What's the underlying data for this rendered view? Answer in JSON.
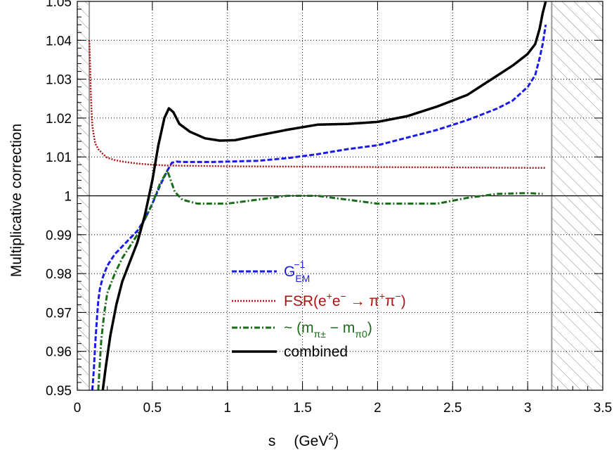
{
  "chart_data": {
    "type": "line",
    "xlabel": "s",
    "xlabel_unit_prefix": "(GeV",
    "xlabel_unit_exp": "2",
    "xlabel_unit_suffix": ")",
    "ylabel": "Multiplicative correction",
    "xlim": [
      0,
      3.5
    ],
    "ylim": [
      0.95,
      1.05
    ],
    "x_ticks": [
      0,
      0.5,
      1,
      1.5,
      2,
      2.5,
      3,
      3.5
    ],
    "x_tick_labels": [
      "0",
      "0.5",
      "1",
      "1.5",
      "2",
      "2.5",
      "3",
      "3.5"
    ],
    "y_ticks": [
      0.95,
      0.96,
      0.97,
      0.98,
      0.99,
      1,
      1.01,
      1.02,
      1.03,
      1.04,
      1.05
    ],
    "y_tick_labels": [
      "0.95",
      "0.96",
      "0.97",
      "0.98",
      "0.99",
      "1",
      "1.01",
      "1.02",
      "1.03",
      "1.04",
      "1.05"
    ],
    "grid": true,
    "reference_line_y": 1,
    "excluded_regions": [
      [
        0,
        0.08
      ],
      [
        3.16,
        3.5
      ]
    ],
    "legend": {
      "placement": "lower-center",
      "entries": [
        {
          "label": "G",
          "sub": "EM",
          "sup": "−1",
          "color": "#1a1ae6",
          "dash": "7,3"
        },
        {
          "label": "FSR(e",
          "sup1": "+",
          "mid1": "e",
          "sup2": "−",
          "mid2": " → π",
          "sup3": "+",
          "mid3": "π",
          "sup4": "−",
          "tail": ")",
          "color": "#b01010",
          "dash": "2,2"
        },
        {
          "label": "~ (m",
          "sub1": "π±",
          "mid": " − m",
          "sub2": "π0",
          "tail": ")",
          "color": "#1a6b1a",
          "dash": "8,3,2,3"
        },
        {
          "label": "combined",
          "color": "#000000",
          "dash": ""
        }
      ]
    },
    "series": [
      {
        "name": "G_EM^-1",
        "color": "#1a1ae6",
        "x": [
          0.1,
          0.11,
          0.12,
          0.13,
          0.14,
          0.15,
          0.17,
          0.2,
          0.25,
          0.3,
          0.35,
          0.4,
          0.45,
          0.5,
          0.55,
          0.6,
          0.63,
          0.66,
          0.7,
          0.8,
          0.9,
          1.0,
          1.2,
          1.4,
          1.6,
          1.8,
          2.0,
          2.2,
          2.4,
          2.6,
          2.8,
          2.9,
          3.0,
          3.05,
          3.08,
          3.1,
          3.12
        ],
        "values": [
          0.95,
          0.955,
          0.962,
          0.968,
          0.973,
          0.976,
          0.979,
          0.982,
          0.985,
          0.987,
          0.989,
          0.991,
          0.994,
          0.998,
          1.0025,
          1.0065,
          1.0085,
          1.0088,
          1.0087,
          1.0087,
          1.0087,
          1.0088,
          1.009,
          1.0097,
          1.0107,
          1.012,
          1.013,
          1.015,
          1.017,
          1.0195,
          1.0225,
          1.0245,
          1.028,
          1.031,
          1.0355,
          1.039,
          1.044
        ]
      },
      {
        "name": "FSR",
        "color": "#b01010",
        "x": [
          0.08,
          0.085,
          0.09,
          0.095,
          0.1,
          0.11,
          0.12,
          0.14,
          0.17,
          0.2,
          0.25,
          0.3,
          0.4,
          0.5,
          0.6,
          0.8,
          1.0,
          1.5,
          2.0,
          2.5,
          3.0,
          3.12
        ],
        "values": [
          1.04,
          1.034,
          1.027,
          1.022,
          1.018,
          1.0155,
          1.0135,
          1.012,
          1.0108,
          1.0098,
          1.0092,
          1.0088,
          1.0083,
          1.008,
          1.0078,
          1.0077,
          1.0076,
          1.0075,
          1.0074,
          1.0073,
          1.0072,
          1.0072
        ]
      },
      {
        "name": "m_pi diff",
        "color": "#1a6b1a",
        "x": [
          0.14,
          0.15,
          0.16,
          0.18,
          0.2,
          0.25,
          0.3,
          0.35,
          0.4,
          0.45,
          0.5,
          0.55,
          0.6,
          0.65,
          0.7,
          0.8,
          1.0,
          1.2,
          1.4,
          1.6,
          1.8,
          2.0,
          2.2,
          2.4,
          2.6,
          2.8,
          3.0,
          3.1
        ],
        "values": [
          0.95,
          0.957,
          0.963,
          0.97,
          0.975,
          0.98,
          0.984,
          0.987,
          0.99,
          0.994,
          0.998,
          1.003,
          1.0065,
          1.001,
          0.999,
          0.998,
          0.998,
          0.999,
          1.0,
          1.0,
          0.999,
          0.998,
          0.998,
          0.998,
          0.9995,
          1.0005,
          1.0007,
          1.0005
        ]
      },
      {
        "name": "combined",
        "color": "#000000",
        "x": [
          0.17,
          0.19,
          0.22,
          0.26,
          0.3,
          0.35,
          0.4,
          0.45,
          0.5,
          0.54,
          0.58,
          0.61,
          0.64,
          0.68,
          0.75,
          0.85,
          0.95,
          1.05,
          1.2,
          1.4,
          1.6,
          1.8,
          2.0,
          2.2,
          2.4,
          2.6,
          2.7,
          2.8,
          2.9,
          3.0,
          3.05,
          3.08,
          3.1,
          3.12
        ],
        "values": [
          0.95,
          0.956,
          0.964,
          0.972,
          0.978,
          0.983,
          0.988,
          0.995,
          1.004,
          1.013,
          1.02,
          1.0225,
          1.0215,
          1.0185,
          1.0165,
          1.0148,
          1.0142,
          1.0143,
          1.0155,
          1.017,
          1.0183,
          1.0185,
          1.019,
          1.0205,
          1.023,
          1.026,
          1.0285,
          1.031,
          1.0335,
          1.0365,
          1.039,
          1.043,
          1.047,
          1.05
        ]
      }
    ]
  }
}
